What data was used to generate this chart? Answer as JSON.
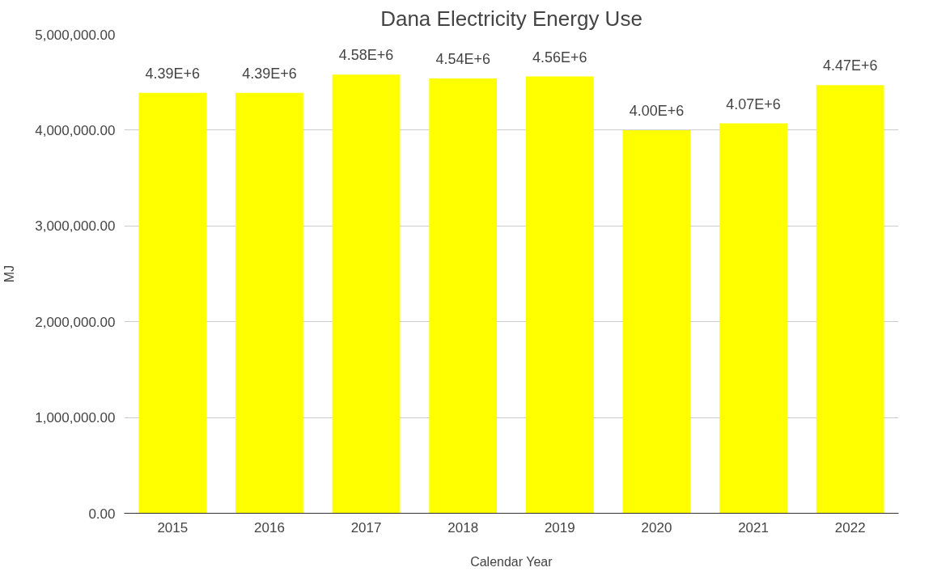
{
  "chart_data": {
    "type": "bar",
    "title": "Dana Electricity Energy Use",
    "xlabel": "Calendar Year",
    "ylabel": "MJ",
    "categories": [
      "2015",
      "2016",
      "2017",
      "2018",
      "2019",
      "2020",
      "2021",
      "2022"
    ],
    "values": [
      4390000,
      4390000,
      4580000,
      4540000,
      4560000,
      4000000,
      4070000,
      4470000
    ],
    "value_labels": [
      "4.39E+6",
      "4.39E+6",
      "4.58E+6",
      "4.54E+6",
      "4.56E+6",
      "4.00E+6",
      "4.07E+6",
      "4.47E+6"
    ],
    "color": "#ffff00",
    "ylim": [
      0,
      5000000
    ],
    "yticks": [
      {
        "value": 0,
        "label": "0.00"
      },
      {
        "value": 1000000,
        "label": "1,000,000.00"
      },
      {
        "value": 2000000,
        "label": "2,000,000.00"
      },
      {
        "value": 3000000,
        "label": "3,000,000.00"
      },
      {
        "value": 4000000,
        "label": "4,000,000.00"
      },
      {
        "value": 5000000,
        "label": "5,000,000.00"
      }
    ],
    "grid": "y"
  }
}
